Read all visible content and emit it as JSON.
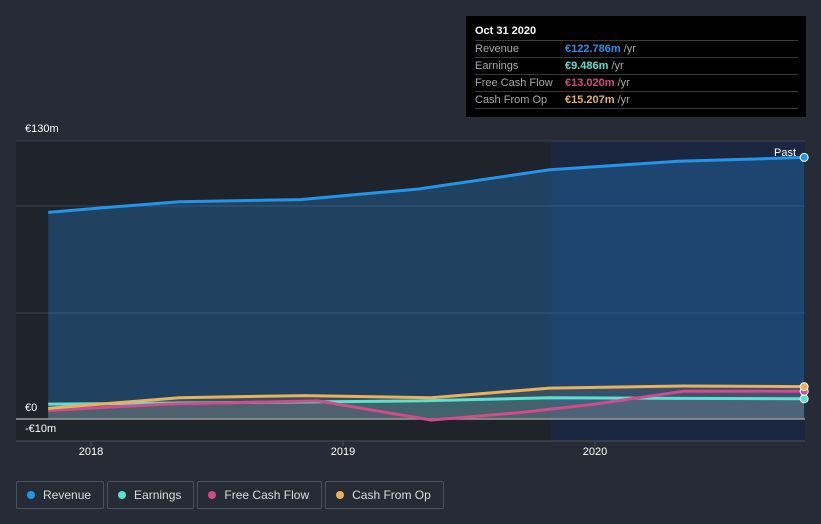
{
  "tooltip": {
    "date": "Oct 31 2020",
    "rows": [
      {
        "label": "Revenue",
        "value": "€122.786m",
        "unit": " /yr",
        "color": "#2394e8"
      },
      {
        "label": "Earnings",
        "value": "€9.486m",
        "unit": " /yr",
        "color": "#5ce0d0"
      },
      {
        "label": "Free Cash Flow",
        "value": "€13.020m",
        "unit": " /yr",
        "color": "#d24b8a"
      },
      {
        "label": "Cash From Op",
        "value": "€15.207m",
        "unit": " /yr",
        "color": "#eab05c"
      }
    ]
  },
  "chart_data": {
    "type": "line",
    "ylim": [
      -10,
      130
    ],
    "y_tick_labels": [
      "€130m",
      "€0",
      "-€10m"
    ],
    "x_tick_labels": [
      "2018",
      "2019",
      "2020"
    ],
    "past_label": "Past",
    "series": [
      {
        "name": "Revenue",
        "color": "#2394e8",
        "x": [
          2017.83,
          2018.03,
          2018.35,
          2018.83,
          2019.3,
          2019.82,
          2020.33,
          2020.83
        ],
        "y": [
          97,
          99,
          102,
          103,
          108,
          117,
          121,
          122.8
        ]
      },
      {
        "name": "Earnings",
        "color": "#5ce0d0",
        "x": [
          2017.83,
          2018.35,
          2018.83,
          2019.3,
          2019.82,
          2020.33,
          2020.83
        ],
        "y": [
          7,
          7.5,
          8,
          8.5,
          10,
          9.7,
          9.5
        ]
      },
      {
        "name": "Free Cash Flow",
        "color": "#d24b8a",
        "x": [
          2017.83,
          2018.3,
          2018.9,
          2019.35,
          2019.7,
          2020.0,
          2020.35,
          2020.83
        ],
        "y": [
          4,
          7,
          8.5,
          -0.5,
          3,
          7,
          13,
          13.0
        ]
      },
      {
        "name": "Cash From Op",
        "color": "#eab05c",
        "x": [
          2017.83,
          2018.35,
          2018.85,
          2019.35,
          2019.82,
          2020.35,
          2020.83
        ],
        "y": [
          5,
          10,
          11,
          10,
          14.5,
          15.5,
          15.2
        ]
      }
    ]
  },
  "legend": [
    "Revenue",
    "Earnings",
    "Free Cash Flow",
    "Cash From Op"
  ]
}
